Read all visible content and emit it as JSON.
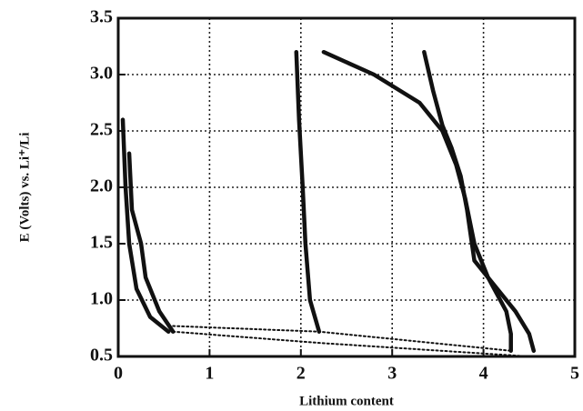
{
  "chart_data": {
    "type": "line",
    "xlabel": "Lithium content",
    "ylabel": "E (Volts) vs. Li⁺/Li",
    "xlim": [
      0,
      5
    ],
    "xticks": [
      0,
      1,
      2,
      3,
      4,
      5
    ],
    "ylim": [
      0.5,
      3.5
    ],
    "yticks": [
      0.5,
      {
        "value": 1,
        "label": "1.0"
      },
      1.5,
      {
        "value": 2,
        "label": "2.0"
      },
      2.5,
      {
        "value": 3,
        "label": "3.0"
      },
      3.5
    ],
    "grid": true,
    "series": [
      {
        "color": "#111111",
        "style": "solid",
        "x": [
          0.05,
          0.08,
          0.12,
          0.2,
          0.35,
          0.55
        ],
        "values": [
          2.6,
          2.0,
          1.5,
          1.1,
          0.85,
          0.72
        ]
      },
      {
        "color": "#111111",
        "style": "solid",
        "x": [
          0.12,
          0.15,
          0.25,
          0.3,
          0.45,
          0.6
        ],
        "values": [
          2.3,
          1.8,
          1.5,
          1.2,
          0.9,
          0.72
        ]
      },
      {
        "color": "#111111",
        "style": "dotted",
        "x": [
          0.6,
          2.2,
          4.5
        ],
        "values": [
          0.72,
          0.62,
          0.5
        ]
      },
      {
        "color": "#111111",
        "style": "dotted",
        "x": [
          0.6,
          2.2,
          4.3
        ],
        "values": [
          0.77,
          0.72,
          0.55
        ]
      },
      {
        "color": "#111111",
        "style": "solid",
        "x": [
          1.95,
          1.98,
          2.02,
          2.05,
          2.1,
          2.2
        ],
        "values": [
          3.2,
          2.6,
          2.0,
          1.5,
          1.0,
          0.72
        ]
      },
      {
        "color": "#111111",
        "style": "solid",
        "x": [
          2.25,
          2.8,
          3.3,
          3.55,
          3.7,
          3.8,
          3.9,
          4.05,
          4.25,
          4.3,
          4.3
        ],
        "values": [
          3.2,
          3.0,
          2.75,
          2.5,
          2.2,
          1.9,
          1.5,
          1.2,
          0.9,
          0.7,
          0.55
        ]
      },
      {
        "color": "#111111",
        "style": "solid",
        "x": [
          3.35,
          3.45,
          3.55,
          3.65,
          3.75,
          3.82,
          3.9,
          4.1,
          4.35,
          4.5,
          4.55
        ],
        "values": [
          3.2,
          2.85,
          2.55,
          2.35,
          2.1,
          1.8,
          1.35,
          1.15,
          0.9,
          0.7,
          0.55
        ]
      }
    ]
  }
}
